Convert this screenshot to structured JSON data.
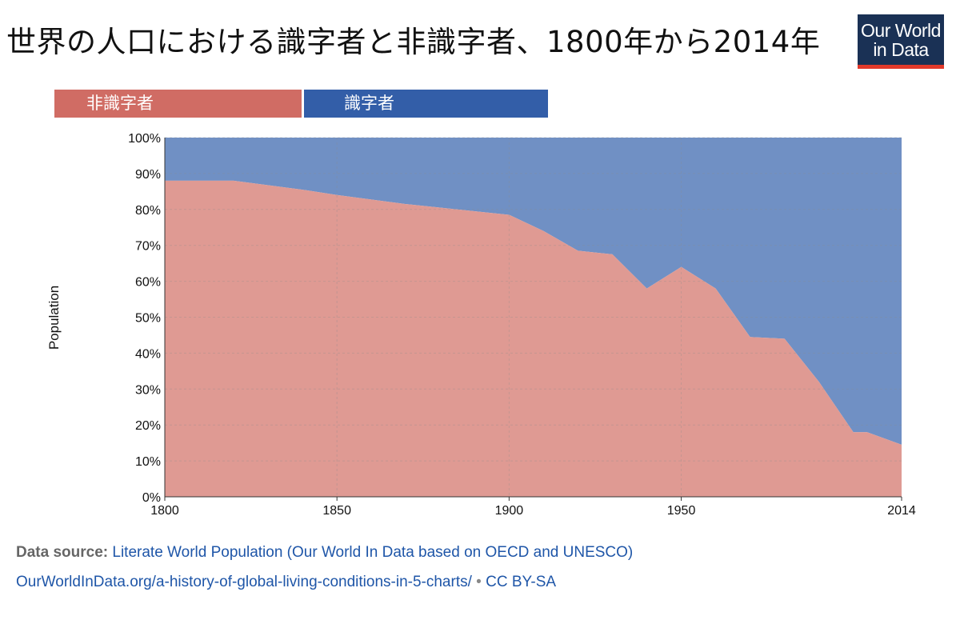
{
  "title": "世界の人口における識字者と非識字者、1800年から2014年",
  "logo": {
    "line1": "Our World",
    "line2": "in Data"
  },
  "footer": {
    "source_label": "Data source:",
    "source_text": "Literate World Population (Our World In Data based on OECD and UNESCO)",
    "url": "OurWorldInData.org/a-history-of-global-living-conditions-in-5-charts/",
    "separator": "•",
    "license": "CC BY-SA"
  },
  "colors": {
    "illiterate_legend": "#d06c64",
    "literate_legend": "#335ea8",
    "illiterate_area": "#df9a93",
    "literate_area": "#7090c4"
  },
  "chart_data": {
    "type": "area",
    "stacked": true,
    "percent": true,
    "ylabel": "Population",
    "xlim": [
      1800,
      2014
    ],
    "ylim": [
      0,
      100
    ],
    "x_ticks": [
      "1800",
      "1850",
      "1900",
      "1950",
      "2014"
    ],
    "y_ticks": [
      "0%",
      "10%",
      "20%",
      "30%",
      "40%",
      "50%",
      "60%",
      "70%",
      "80%",
      "90%",
      "100%"
    ],
    "grid": true,
    "legend_position": "top",
    "x": [
      1800,
      1820,
      1840,
      1850,
      1870,
      1900,
      1910,
      1920,
      1930,
      1940,
      1950,
      1960,
      1970,
      1980,
      1990,
      2000,
      2004,
      2014
    ],
    "series": [
      {
        "name": "非識字者",
        "values": [
          88,
          88,
          85.5,
          84,
          81.5,
          78.5,
          74,
          68.5,
          67.5,
          58,
          64,
          58,
          44.5,
          44,
          32,
          18,
          18,
          14.5
        ]
      },
      {
        "name": "識字者",
        "values": [
          12,
          12,
          14.5,
          16,
          18.5,
          21.5,
          26,
          31.5,
          32.5,
          42,
          36,
          42,
          55.5,
          56,
          68,
          82,
          82,
          85.5
        ]
      }
    ]
  }
}
